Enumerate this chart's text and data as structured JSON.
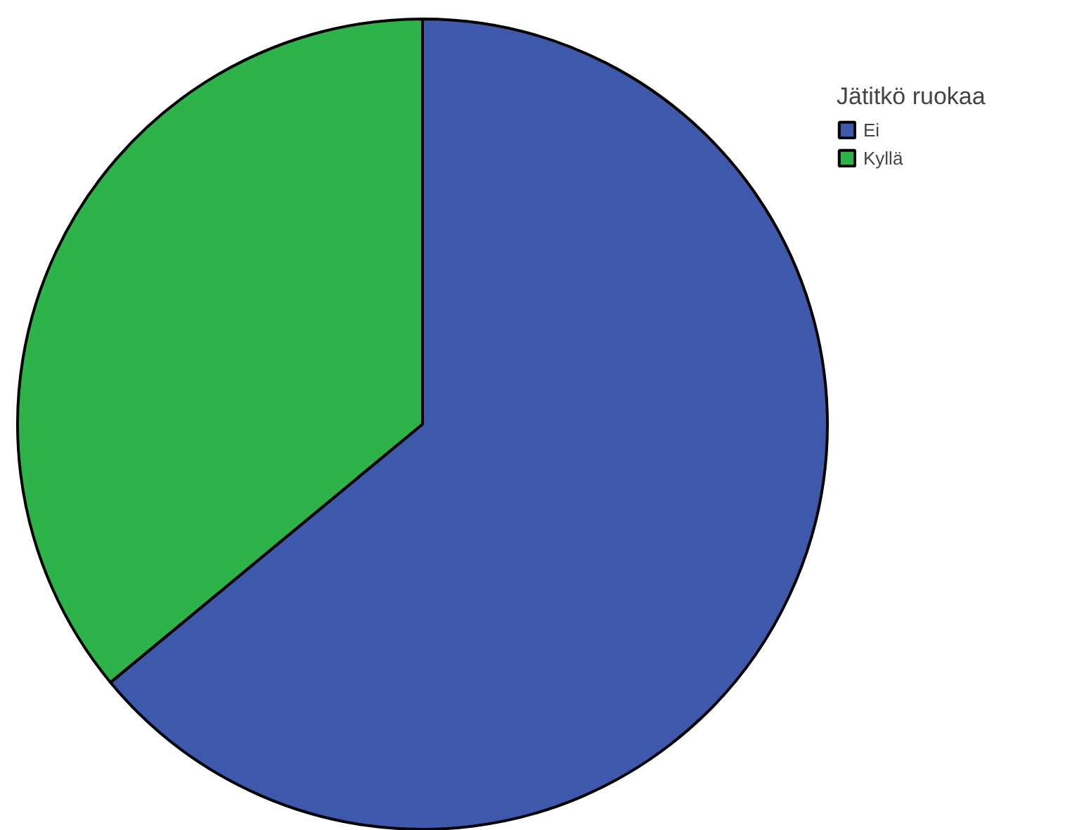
{
  "chart_data": {
    "type": "pie",
    "legend_title": "Jätitkö ruokaa",
    "legend": "top right",
    "categories": [
      "Ei",
      "Kyllä"
    ],
    "values": [
      64,
      36
    ],
    "colors": [
      "#3e58ac",
      "#2db34a"
    ]
  }
}
